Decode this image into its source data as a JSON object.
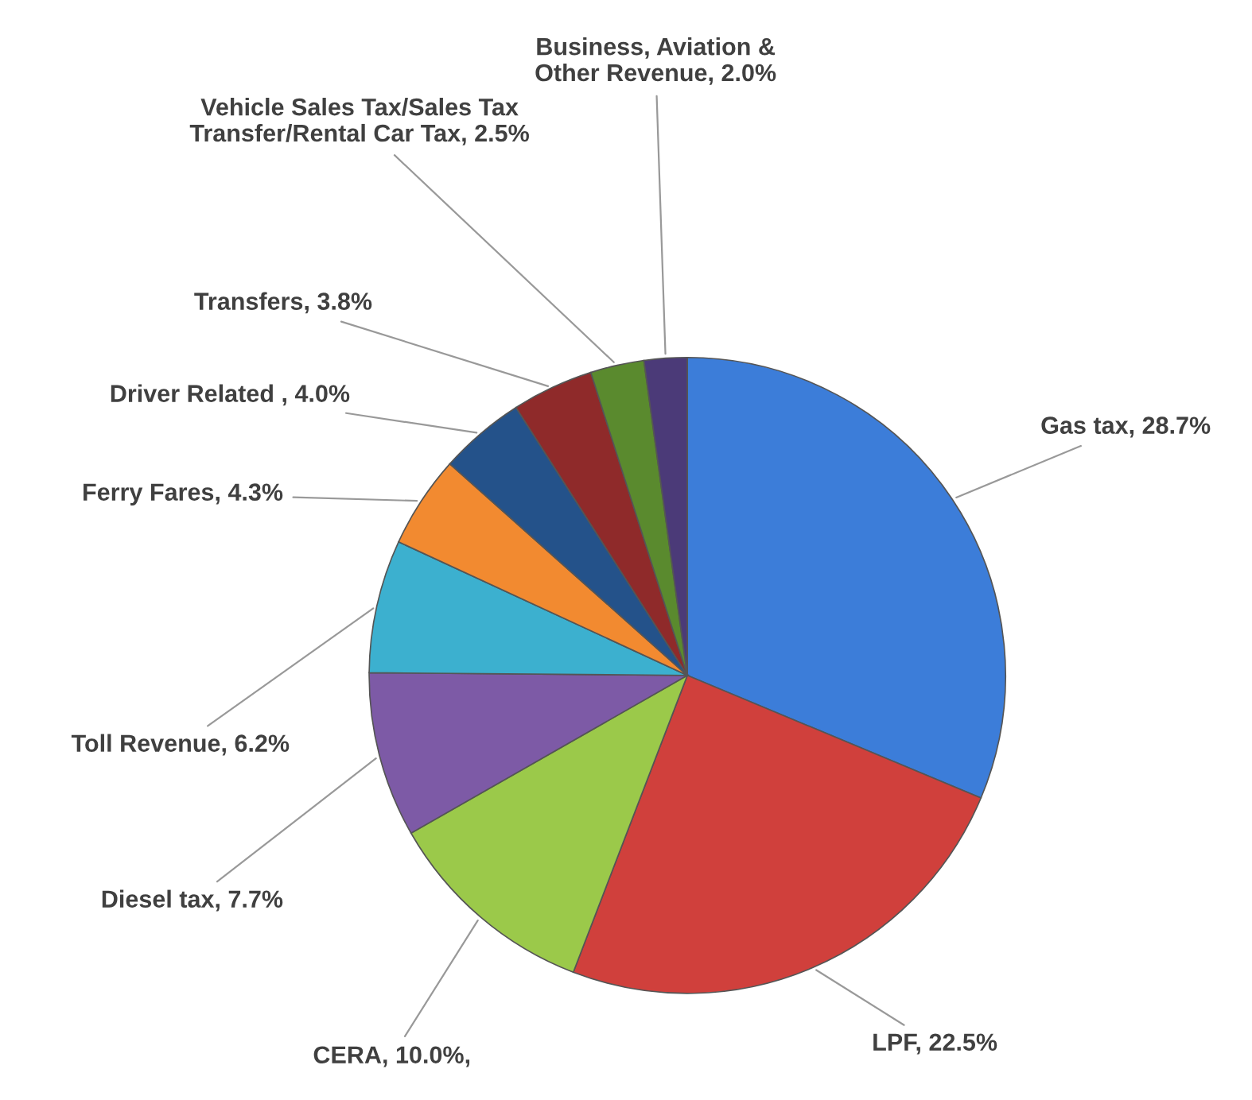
{
  "chart_data": {
    "type": "pie",
    "categories": [
      "Gas tax",
      "LPF",
      "CERA",
      "Diesel tax",
      "Toll Revenue",
      "Ferry Fares",
      "Driver Related ",
      "Transfers",
      "Vehicle Sales Tax/Sales Tax Transfer/Rental Car Tax",
      "Business, Aviation & Other Revenue"
    ],
    "values": [
      28.7,
      22.5,
      10.0,
      7.7,
      6.2,
      4.3,
      4.0,
      3.8,
      2.5,
      2.0
    ],
    "value_labels": [
      "28.7%",
      "22.5%",
      "10.0%,",
      "7.7%",
      "6.2%",
      "4.3%",
      "4.0%",
      "3.8%",
      "2.5%",
      "2.0%"
    ],
    "colors": [
      "#3c7dd9",
      "#d0403c",
      "#9bc94a",
      "#7d5aa6",
      "#3cb0cf",
      "#f28a30",
      "#24528a",
      "#8f2a2a",
      "#5a8a2e",
      "#4b3a78"
    ]
  }
}
